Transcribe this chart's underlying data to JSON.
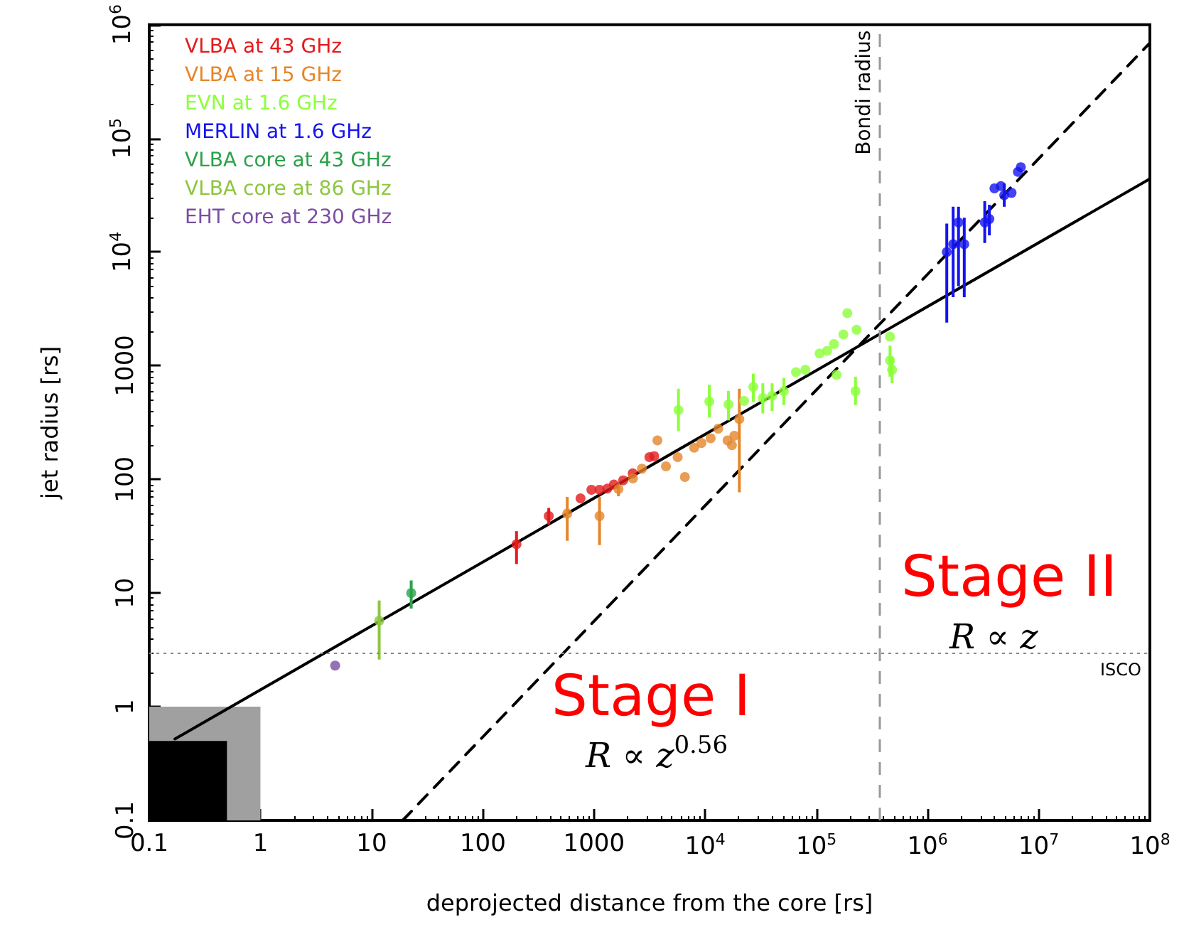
{
  "chart_data": {
    "type": "scatter",
    "xlabel": "deprojected distance from the core [rs]",
    "ylabel": "jet radius [rs]",
    "log": "xy",
    "grid": false,
    "legend": "top left",
    "marker": "circle",
    "xlim": [
      0.1,
      100000000
    ],
    "ylim": [
      0.1,
      1000000
    ],
    "xticks": [
      0.1,
      1,
      10,
      100,
      1000,
      {
        "value": 10000,
        "label": "10$^{4}$"
      },
      {
        "value": 100000,
        "label": "10$^{5}$"
      },
      {
        "value": 1000000,
        "label": "10$^{6}$"
      },
      {
        "value": 10000000,
        "label": "10$^{7}$"
      },
      {
        "value": 100000000,
        "label": "10$^{8}$"
      }
    ],
    "yticks": [
      0.1,
      1,
      10,
      100,
      1000,
      {
        "value": 10000,
        "label": "10$^{4}$"
      },
      {
        "value": 100000,
        "label": "10$^{5}$"
      },
      {
        "value": 1000000,
        "label": "10$^{6}$"
      }
    ],
    "ref_lines": [
      {
        "axis": "x",
        "value": 370000,
        "label": "Bondi radius",
        "color": "#999999",
        "line_style": "dashed"
      },
      {
        "axis": "y",
        "value": 3,
        "label": "ISCO",
        "color": "#888888",
        "line_style": "dotted"
      }
    ],
    "annotations": [
      "Stage I",
      "R ∝ z$^{0.56}$",
      "Stage II",
      "R ∝ z"
    ],
    "series": [
      {
        "type": "area",
        "color": "#a0a0a0",
        "marker": "none",
        "x": [
          0.1,
          1
        ],
        "values": [
          1,
          1
        ]
      },
      {
        "type": "area",
        "color": "#000000",
        "marker": "none",
        "x": [
          0.1,
          0.5
        ],
        "values": [
          0.5,
          0.5
        ]
      },
      {
        "type": "line",
        "color": "#000000",
        "marker": "none",
        "line_style": "solid",
        "x": [
          0.17,
          100000000
        ],
        "values": [
          0.52,
          44000
        ]
      },
      {
        "type": "line",
        "color": "#000000",
        "marker": "none",
        "line_style": "dashed",
        "x": [
          19,
          100000000
        ],
        "values": [
          0.1,
          690000
        ]
      },
      {
        "name": "VLBA at 43 GHz",
        "color": "#e31a1c",
        "x": [
          201,
          392,
          757,
          948,
          1122,
          1320,
          1510,
          1830,
          2230,
          3150,
          3480
        ],
        "values": [
          26.9,
          47.6,
          68,
          81,
          81,
          83,
          90,
          98,
          113,
          157,
          160
        ],
        "errors": [
          [
            18,
            35
          ],
          [
            40,
            56
          ],
          null,
          null,
          null,
          null,
          null,
          null,
          null,
          null,
          null
        ]
      },
      {
        "name": "VLBA at 15 GHz",
        "color": "#e5862b",
        "x": [
          575,
          1122,
          1660,
          2240,
          2700,
          3720,
          4440,
          5660,
          6570,
          7960,
          9260,
          11200,
          13100,
          15900,
          18300,
          20300,
          17400
        ],
        "values": [
          50,
          47.6,
          82,
          102,
          124,
          220,
          130,
          157,
          105,
          190,
          209,
          230,
          279,
          220,
          242,
          339,
          200
        ],
        "errors": [
          [
            28.8,
            70
          ],
          [
            26.4,
            70
          ],
          [
            71,
            94
          ],
          null,
          null,
          null,
          null,
          null,
          null,
          null,
          null,
          null,
          null,
          null,
          null,
          [
            77,
            627
          ],
          null
        ]
      },
      {
        "name": "EVN at 1.6 GHz",
        "color": "#8cff3a",
        "x": [
          5750,
          10900,
          16200,
          22400,
          27100,
          33000,
          40000,
          51000,
          65600,
          79700,
          107000,
          125000,
          144000,
          152000,
          175000,
          190000,
          225000,
          230000,
          460000,
          460000,
          480000
        ],
        "values": [
          407,
          484,
          457,
          490,
          650,
          519,
          543,
          598,
          877,
          920,
          1280,
          1350,
          1550,
          830,
          1880,
          2900,
          598,
          2070,
          1800,
          1110,
          920
        ],
        "errors": [
          [
            266,
            627
          ],
          [
            350,
            680
          ],
          [
            330,
            600
          ],
          null,
          [
            480,
            850
          ],
          [
            380,
            700
          ],
          [
            400,
            700
          ],
          [
            450,
            780
          ],
          null,
          null,
          null,
          null,
          null,
          null,
          null,
          null,
          [
            450,
            800
          ],
          null,
          null,
          [
            800,
            1500
          ],
          [
            700,
            1200
          ]
        ]
      },
      {
        "name": "MERLIN at 1.6 GHz",
        "color": "#1414f0",
        "x": [
          1490000,
          1700000,
          1900000,
          2140000,
          3270000,
          3600000,
          4000000,
          4570000,
          4900000,
          5700000,
          6500000,
          6900000
        ],
        "values": [
          10000,
          11700,
          18200,
          11700,
          18200,
          19500,
          36300,
          38000,
          31600,
          33100,
          50700,
          55700
        ],
        "errors": [
          [
            2390,
            17800
          ],
          [
            4000,
            25000
          ],
          [
            5000,
            25000
          ],
          [
            4000,
            20000
          ],
          [
            12000,
            28000
          ],
          [
            14000,
            26000
          ],
          null,
          null,
          [
            25000,
            40000
          ],
          null,
          null,
          null
        ]
      },
      {
        "name": "VLBA core at 43 GHz",
        "color": "#2ca24a",
        "x": [
          22.7
        ],
        "values": [
          10.0
        ],
        "errors": [
          [
            7.3,
            12.9
          ]
        ]
      },
      {
        "name": "VLBA core at 86 GHz",
        "color": "#8cc63f",
        "x": [
          11.7
        ],
        "values": [
          5.7
        ],
        "errors": [
          [
            2.6,
            8.6
          ]
        ]
      },
      {
        "name": "EHT core at 230 GHz",
        "color": "#7b4fa0",
        "x": [
          4.7
        ],
        "values": [
          2.3
        ]
      }
    ]
  }
}
